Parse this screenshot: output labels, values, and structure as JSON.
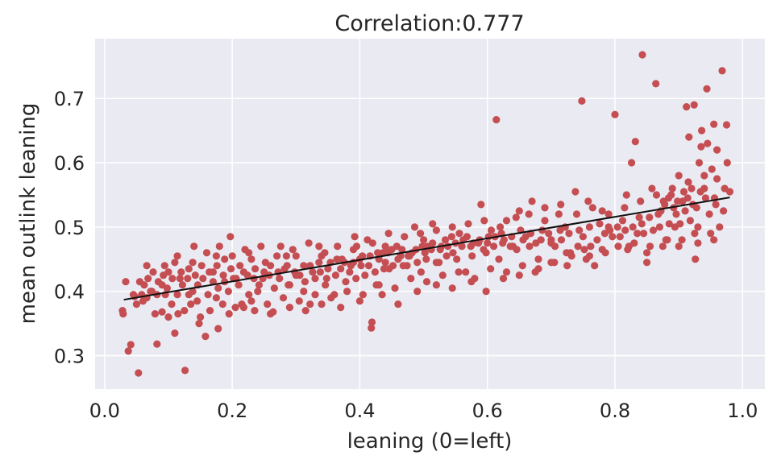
{
  "chart_data": {
    "type": "scatter",
    "title": "Correlation:0.777",
    "xlabel": "leaning (0=left)",
    "ylabel": "mean outlink leaning",
    "xlim": [
      -0.015,
      1.035
    ],
    "ylim": [
      0.248,
      0.793
    ],
    "xticks": [
      0.0,
      0.2,
      0.4,
      0.6,
      0.8,
      1.0
    ],
    "xtick_labels": [
      "0.0",
      "0.2",
      "0.4",
      "0.6",
      "0.8",
      "1.0"
    ],
    "yticks": [
      0.3,
      0.4,
      0.5,
      0.6,
      0.7
    ],
    "ytick_labels": [
      "0.3",
      "0.4",
      "0.5",
      "0.6",
      "0.7"
    ],
    "grid": true,
    "colors": {
      "background": "#eaeaf2",
      "grid": "#ffffff",
      "points": "#c44e52",
      "fit_line": "#111111"
    },
    "fit_line": {
      "x": [
        0.03,
        0.98
      ],
      "y": [
        0.387,
        0.546
      ]
    },
    "points": [
      [
        0.028,
        0.37
      ],
      [
        0.029,
        0.365
      ],
      [
        0.033,
        0.415
      ],
      [
        0.037,
        0.307
      ],
      [
        0.041,
        0.317
      ],
      [
        0.047,
        0.392
      ],
      [
        0.053,
        0.273
      ],
      [
        0.06,
        0.385
      ],
      [
        0.066,
        0.44
      ],
      [
        0.072,
        0.4
      ],
      [
        0.079,
        0.365
      ],
      [
        0.082,
        0.318
      ],
      [
        0.09,
        0.368
      ],
      [
        0.094,
        0.44
      ],
      [
        0.11,
        0.335
      ],
      [
        0.114,
        0.455
      ],
      [
        0.118,
        0.42
      ],
      [
        0.126,
        0.277
      ],
      [
        0.132,
        0.395
      ],
      [
        0.138,
        0.445
      ],
      [
        0.148,
        0.35
      ],
      [
        0.158,
        0.33
      ],
      [
        0.17,
        0.43
      ],
      [
        0.178,
        0.342
      ],
      [
        0.188,
        0.45
      ],
      [
        0.197,
        0.485
      ],
      [
        0.206,
        0.42
      ],
      [
        0.218,
        0.375
      ],
      [
        0.226,
        0.46
      ],
      [
        0.24,
        0.4
      ],
      [
        0.252,
        0.445
      ],
      [
        0.264,
        0.368
      ],
      [
        0.276,
        0.47
      ],
      [
        0.288,
        0.41
      ],
      [
        0.3,
        0.455
      ],
      [
        0.312,
        0.4
      ],
      [
        0.322,
        0.38
      ],
      [
        0.336,
        0.47
      ],
      [
        0.348,
        0.42
      ],
      [
        0.36,
        0.395
      ],
      [
        0.372,
        0.45
      ],
      [
        0.384,
        0.43
      ],
      [
        0.392,
        0.485
      ],
      [
        0.402,
        0.44
      ],
      [
        0.412,
        0.48
      ],
      [
        0.418,
        0.343
      ],
      [
        0.419,
        0.352
      ],
      [
        0.426,
        0.41
      ],
      [
        0.436,
        0.46
      ],
      [
        0.446,
        0.435
      ],
      [
        0.458,
        0.47
      ],
      [
        0.468,
        0.44
      ],
      [
        0.478,
        0.455
      ],
      [
        0.486,
        0.5
      ],
      [
        0.496,
        0.43
      ],
      [
        0.506,
        0.47
      ],
      [
        0.514,
        0.505
      ],
      [
        0.524,
        0.445
      ],
      [
        0.534,
        0.48
      ],
      [
        0.546,
        0.46
      ],
      [
        0.556,
        0.49
      ],
      [
        0.566,
        0.43
      ],
      [
        0.578,
        0.475
      ],
      [
        0.59,
        0.535
      ],
      [
        0.598,
        0.46
      ],
      [
        0.606,
        0.495
      ],
      [
        0.614,
        0.667
      ],
      [
        0.618,
        0.45
      ],
      [
        0.63,
        0.51
      ],
      [
        0.64,
        0.47
      ],
      [
        0.65,
        0.525
      ],
      [
        0.66,
        0.485
      ],
      [
        0.67,
        0.54
      ],
      [
        0.68,
        0.45
      ],
      [
        0.69,
        0.51
      ],
      [
        0.7,
        0.48
      ],
      [
        0.712,
        0.52
      ],
      [
        0.724,
        0.46
      ],
      [
        0.738,
        0.555
      ],
      [
        0.748,
        0.696
      ],
      [
        0.75,
        0.485
      ],
      [
        0.758,
        0.54
      ],
      [
        0.768,
        0.44
      ],
      [
        0.78,
        0.525
      ],
      [
        0.79,
        0.5
      ],
      [
        0.8,
        0.675
      ],
      [
        0.808,
        0.485
      ],
      [
        0.818,
        0.55
      ],
      [
        0.826,
        0.6
      ],
      [
        0.832,
        0.633
      ],
      [
        0.838,
        0.515
      ],
      [
        0.843,
        0.768
      ],
      [
        0.85,
        0.445
      ],
      [
        0.858,
        0.56
      ],
      [
        0.864,
        0.723
      ],
      [
        0.87,
        0.5
      ],
      [
        0.876,
        0.54
      ],
      [
        0.882,
        0.48
      ],
      [
        0.888,
        0.55
      ],
      [
        0.894,
        0.5
      ],
      [
        0.9,
        0.58
      ],
      [
        0.906,
        0.54
      ],
      [
        0.912,
        0.687
      ],
      [
        0.916,
        0.64
      ],
      [
        0.92,
        0.56
      ],
      [
        0.924,
        0.69
      ],
      [
        0.926,
        0.45
      ],
      [
        0.928,
        0.53
      ],
      [
        0.932,
        0.6
      ],
      [
        0.936,
        0.65
      ],
      [
        0.94,
        0.56
      ],
      [
        0.944,
        0.715
      ],
      [
        0.948,
        0.52
      ],
      [
        0.952,
        0.59
      ],
      [
        0.956,
        0.545
      ],
      [
        0.96,
        0.62
      ],
      [
        0.964,
        0.5
      ],
      [
        0.968,
        0.743
      ],
      [
        0.972,
        0.56
      ],
      [
        0.976,
        0.6
      ],
      [
        0.98,
        0.555
      ],
      [
        0.975,
        0.659
      ],
      [
        0.955,
        0.66
      ],
      [
        0.945,
        0.63
      ],
      [
        0.935,
        0.625
      ],
      [
        0.93,
        0.5
      ],
      [
        0.918,
        0.51
      ],
      [
        0.91,
        0.525
      ],
      [
        0.902,
        0.505
      ],
      [
        0.896,
        0.52
      ],
      [
        0.885,
        0.505
      ],
      [
        0.872,
        0.525
      ],
      [
        0.86,
        0.495
      ],
      [
        0.845,
        0.49
      ],
      [
        0.835,
        0.49
      ],
      [
        0.822,
        0.47
      ],
      [
        0.812,
        0.51
      ],
      [
        0.796,
        0.485
      ],
      [
        0.784,
        0.49
      ],
      [
        0.772,
        0.48
      ],
      [
        0.762,
        0.47
      ],
      [
        0.752,
        0.465
      ],
      [
        0.742,
        0.47
      ],
      [
        0.732,
        0.455
      ],
      [
        0.722,
        0.5
      ],
      [
        0.714,
        0.495
      ],
      [
        0.706,
        0.47
      ],
      [
        0.696,
        0.49
      ],
      [
        0.686,
        0.495
      ],
      [
        0.676,
        0.475
      ],
      [
        0.666,
        0.47
      ],
      [
        0.656,
        0.48
      ],
      [
        0.646,
        0.465
      ],
      [
        0.636,
        0.47
      ],
      [
        0.626,
        0.48
      ],
      [
        0.622,
        0.49
      ],
      [
        0.61,
        0.47
      ],
      [
        0.602,
        0.485
      ],
      [
        0.594,
        0.465
      ],
      [
        0.586,
        0.475
      ],
      [
        0.576,
        0.455
      ],
      [
        0.568,
        0.485
      ],
      [
        0.56,
        0.47
      ],
      [
        0.552,
        0.45
      ],
      [
        0.544,
        0.485
      ],
      [
        0.536,
        0.455
      ],
      [
        0.528,
        0.47
      ],
      [
        0.52,
        0.445
      ],
      [
        0.512,
        0.465
      ],
      [
        0.504,
        0.45
      ],
      [
        0.498,
        0.47
      ],
      [
        0.49,
        0.445
      ],
      [
        0.482,
        0.46
      ],
      [
        0.474,
        0.44
      ],
      [
        0.466,
        0.465
      ],
      [
        0.46,
        0.45
      ],
      [
        0.452,
        0.44
      ],
      [
        0.444,
        0.46
      ],
      [
        0.438,
        0.435
      ],
      [
        0.43,
        0.45
      ],
      [
        0.424,
        0.43
      ],
      [
        0.416,
        0.455
      ],
      [
        0.408,
        0.425
      ],
      [
        0.4,
        0.45
      ],
      [
        0.394,
        0.42
      ],
      [
        0.386,
        0.44
      ],
      [
        0.378,
        0.415
      ],
      [
        0.37,
        0.435
      ],
      [
        0.362,
        0.425
      ],
      [
        0.354,
        0.445
      ],
      [
        0.346,
        0.41
      ],
      [
        0.338,
        0.43
      ],
      [
        0.33,
        0.42
      ],
      [
        0.322,
        0.44
      ],
      [
        0.314,
        0.415
      ],
      [
        0.306,
        0.425
      ],
      [
        0.298,
        0.43
      ],
      [
        0.29,
        0.41
      ],
      [
        0.282,
        0.435
      ],
      [
        0.274,
        0.42
      ],
      [
        0.266,
        0.405
      ],
      [
        0.258,
        0.425
      ],
      [
        0.25,
        0.43
      ],
      [
        0.242,
        0.41
      ],
      [
        0.234,
        0.42
      ],
      [
        0.226,
        0.395
      ],
      [
        0.218,
        0.43
      ],
      [
        0.21,
        0.41
      ],
      [
        0.202,
        0.42
      ],
      [
        0.194,
        0.4
      ],
      [
        0.186,
        0.425
      ],
      [
        0.178,
        0.405
      ],
      [
        0.17,
        0.415
      ],
      [
        0.162,
        0.395
      ],
      [
        0.154,
        0.42
      ],
      [
        0.146,
        0.41
      ],
      [
        0.138,
        0.4
      ],
      [
        0.13,
        0.42
      ],
      [
        0.122,
        0.41
      ],
      [
        0.114,
        0.395
      ],
      [
        0.106,
        0.42
      ],
      [
        0.098,
        0.405
      ],
      [
        0.09,
        0.41
      ],
      [
        0.082,
        0.395
      ],
      [
        0.074,
        0.4
      ],
      [
        0.066,
        0.39
      ],
      [
        0.058,
        0.395
      ],
      [
        0.05,
        0.38
      ],
      [
        0.045,
        0.395
      ],
      [
        0.14,
        0.47
      ],
      [
        0.16,
        0.46
      ],
      [
        0.18,
        0.47
      ],
      [
        0.2,
        0.455
      ],
      [
        0.22,
        0.465
      ],
      [
        0.245,
        0.47
      ],
      [
        0.27,
        0.455
      ],
      [
        0.295,
        0.465
      ],
      [
        0.32,
        0.475
      ],
      [
        0.345,
        0.46
      ],
      [
        0.365,
        0.47
      ],
      [
        0.395,
        0.47
      ],
      [
        0.42,
        0.475
      ],
      [
        0.445,
        0.49
      ],
      [
        0.47,
        0.485
      ],
      [
        0.495,
        0.49
      ],
      [
        0.52,
        0.495
      ],
      [
        0.545,
        0.5
      ],
      [
        0.57,
        0.505
      ],
      [
        0.595,
        0.51
      ],
      [
        0.62,
        0.5
      ],
      [
        0.645,
        0.515
      ],
      [
        0.665,
        0.52
      ],
      [
        0.69,
        0.53
      ],
      [
        0.715,
        0.535
      ],
      [
        0.74,
        0.52
      ],
      [
        0.765,
        0.53
      ],
      [
        0.79,
        0.52
      ],
      [
        0.815,
        0.53
      ],
      [
        0.84,
        0.54
      ],
      [
        0.865,
        0.55
      ],
      [
        0.89,
        0.56
      ],
      [
        0.915,
        0.57
      ],
      [
        0.94,
        0.58
      ],
      [
        0.96,
        0.575
      ],
      [
        0.105,
        0.38
      ],
      [
        0.125,
        0.37
      ],
      [
        0.145,
        0.385
      ],
      [
        0.165,
        0.37
      ],
      [
        0.185,
        0.38
      ],
      [
        0.205,
        0.375
      ],
      [
        0.23,
        0.385
      ],
      [
        0.255,
        0.38
      ],
      [
        0.28,
        0.39
      ],
      [
        0.305,
        0.385
      ],
      [
        0.33,
        0.395
      ],
      [
        0.355,
        0.39
      ],
      [
        0.38,
        0.4
      ],
      [
        0.405,
        0.395
      ],
      [
        0.43,
        0.41
      ],
      [
        0.455,
        0.405
      ],
      [
        0.48,
        0.42
      ],
      [
        0.505,
        0.415
      ],
      [
        0.53,
        0.425
      ],
      [
        0.555,
        0.43
      ],
      [
        0.58,
        0.42
      ],
      [
        0.605,
        0.435
      ],
      [
        0.63,
        0.43
      ],
      [
        0.655,
        0.44
      ],
      [
        0.68,
        0.435
      ],
      [
        0.705,
        0.445
      ],
      [
        0.73,
        0.46
      ],
      [
        0.755,
        0.45
      ],
      [
        0.78,
        0.465
      ],
      [
        0.805,
        0.47
      ],
      [
        0.83,
        0.475
      ],
      [
        0.855,
        0.47
      ],
      [
        0.88,
        0.48
      ],
      [
        0.905,
        0.48
      ],
      [
        0.925,
        0.49
      ],
      [
        0.95,
        0.49
      ],
      [
        0.97,
        0.525
      ],
      [
        0.958,
        0.535
      ],
      [
        0.942,
        0.545
      ],
      [
        0.934,
        0.555
      ],
      [
        0.922,
        0.535
      ],
      [
        0.914,
        0.545
      ],
      [
        0.908,
        0.555
      ],
      [
        0.898,
        0.54
      ],
      [
        0.892,
        0.53
      ],
      [
        0.884,
        0.545
      ],
      [
        0.878,
        0.535
      ],
      [
        0.868,
        0.52
      ],
      [
        0.854,
        0.515
      ],
      [
        0.842,
        0.505
      ],
      [
        0.828,
        0.5
      ],
      [
        0.816,
        0.495
      ],
      [
        0.804,
        0.5
      ],
      [
        0.792,
        0.495
      ],
      [
        0.776,
        0.505
      ],
      [
        0.76,
        0.5
      ],
      [
        0.744,
        0.495
      ],
      [
        0.728,
        0.49
      ],
      [
        0.716,
        0.48
      ],
      [
        0.7,
        0.475
      ],
      [
        0.684,
        0.48
      ],
      [
        0.668,
        0.49
      ],
      [
        0.652,
        0.495
      ],
      [
        0.638,
        0.485
      ],
      [
        0.624,
        0.475
      ],
      [
        0.612,
        0.485
      ],
      [
        0.6,
        0.475
      ],
      [
        0.588,
        0.48
      ],
      [
        0.574,
        0.47
      ],
      [
        0.562,
        0.48
      ],
      [
        0.55,
        0.475
      ],
      [
        0.538,
        0.47
      ],
      [
        0.526,
        0.465
      ],
      [
        0.514,
        0.475
      ],
      [
        0.502,
        0.46
      ],
      [
        0.488,
        0.465
      ],
      [
        0.476,
        0.455
      ],
      [
        0.464,
        0.455
      ],
      [
        0.45,
        0.465
      ],
      [
        0.44,
        0.445
      ],
      [
        0.428,
        0.46
      ],
      [
        0.414,
        0.44
      ],
      [
        0.404,
        0.455
      ],
      [
        0.39,
        0.445
      ],
      [
        0.376,
        0.445
      ],
      [
        0.364,
        0.45
      ],
      [
        0.35,
        0.435
      ],
      [
        0.336,
        0.445
      ],
      [
        0.326,
        0.43
      ],
      [
        0.312,
        0.44
      ],
      [
        0.3,
        0.425
      ],
      [
        0.286,
        0.44
      ],
      [
        0.272,
        0.43
      ],
      [
        0.26,
        0.44
      ],
      [
        0.248,
        0.42
      ],
      [
        0.236,
        0.435
      ],
      [
        0.224,
        0.425
      ],
      [
        0.212,
        0.44
      ],
      [
        0.198,
        0.435
      ],
      [
        0.188,
        0.415
      ],
      [
        0.176,
        0.44
      ],
      [
        0.164,
        0.43
      ],
      [
        0.152,
        0.44
      ],
      [
        0.142,
        0.425
      ],
      [
        0.132,
        0.435
      ],
      [
        0.12,
        0.43
      ],
      [
        0.11,
        0.445
      ],
      [
        0.1,
        0.43
      ],
      [
        0.092,
        0.425
      ],
      [
        0.084,
        0.415
      ],
      [
        0.076,
        0.43
      ],
      [
        0.068,
        0.42
      ],
      [
        0.062,
        0.41
      ],
      [
        0.055,
        0.415
      ],
      [
        0.1,
        0.36
      ],
      [
        0.095,
        0.395
      ],
      [
        0.115,
        0.365
      ],
      [
        0.135,
        0.38
      ],
      [
        0.15,
        0.36
      ],
      [
        0.175,
        0.39
      ],
      [
        0.195,
        0.365
      ],
      [
        0.215,
        0.38
      ],
      [
        0.235,
        0.37
      ],
      [
        0.26,
        0.365
      ],
      [
        0.29,
        0.375
      ],
      [
        0.315,
        0.37
      ],
      [
        0.34,
        0.38
      ],
      [
        0.37,
        0.375
      ],
      [
        0.4,
        0.385
      ],
      [
        0.435,
        0.395
      ],
      [
        0.46,
        0.38
      ],
      [
        0.49,
        0.4
      ],
      [
        0.52,
        0.41
      ],
      [
        0.545,
        0.405
      ],
      [
        0.575,
        0.415
      ],
      [
        0.598,
        0.4
      ],
      [
        0.625,
        0.42
      ],
      [
        0.65,
        0.425
      ],
      [
        0.675,
        0.43
      ],
      [
        0.7,
        0.445
      ],
      [
        0.725,
        0.44
      ],
      [
        0.76,
        0.455
      ],
      [
        0.785,
        0.46
      ],
      [
        0.82,
        0.465
      ],
      [
        0.85,
        0.46
      ],
      [
        0.875,
        0.47
      ],
      [
        0.9,
        0.47
      ],
      [
        0.93,
        0.475
      ],
      [
        0.955,
        0.48
      ],
      [
        0.175,
        0.455
      ],
      [
        0.23,
        0.45
      ],
      [
        0.285,
        0.455
      ],
      [
        0.34,
        0.455
      ],
      [
        0.39,
        0.465
      ],
      [
        0.44,
        0.47
      ],
      [
        0.5,
        0.48
      ]
    ]
  }
}
